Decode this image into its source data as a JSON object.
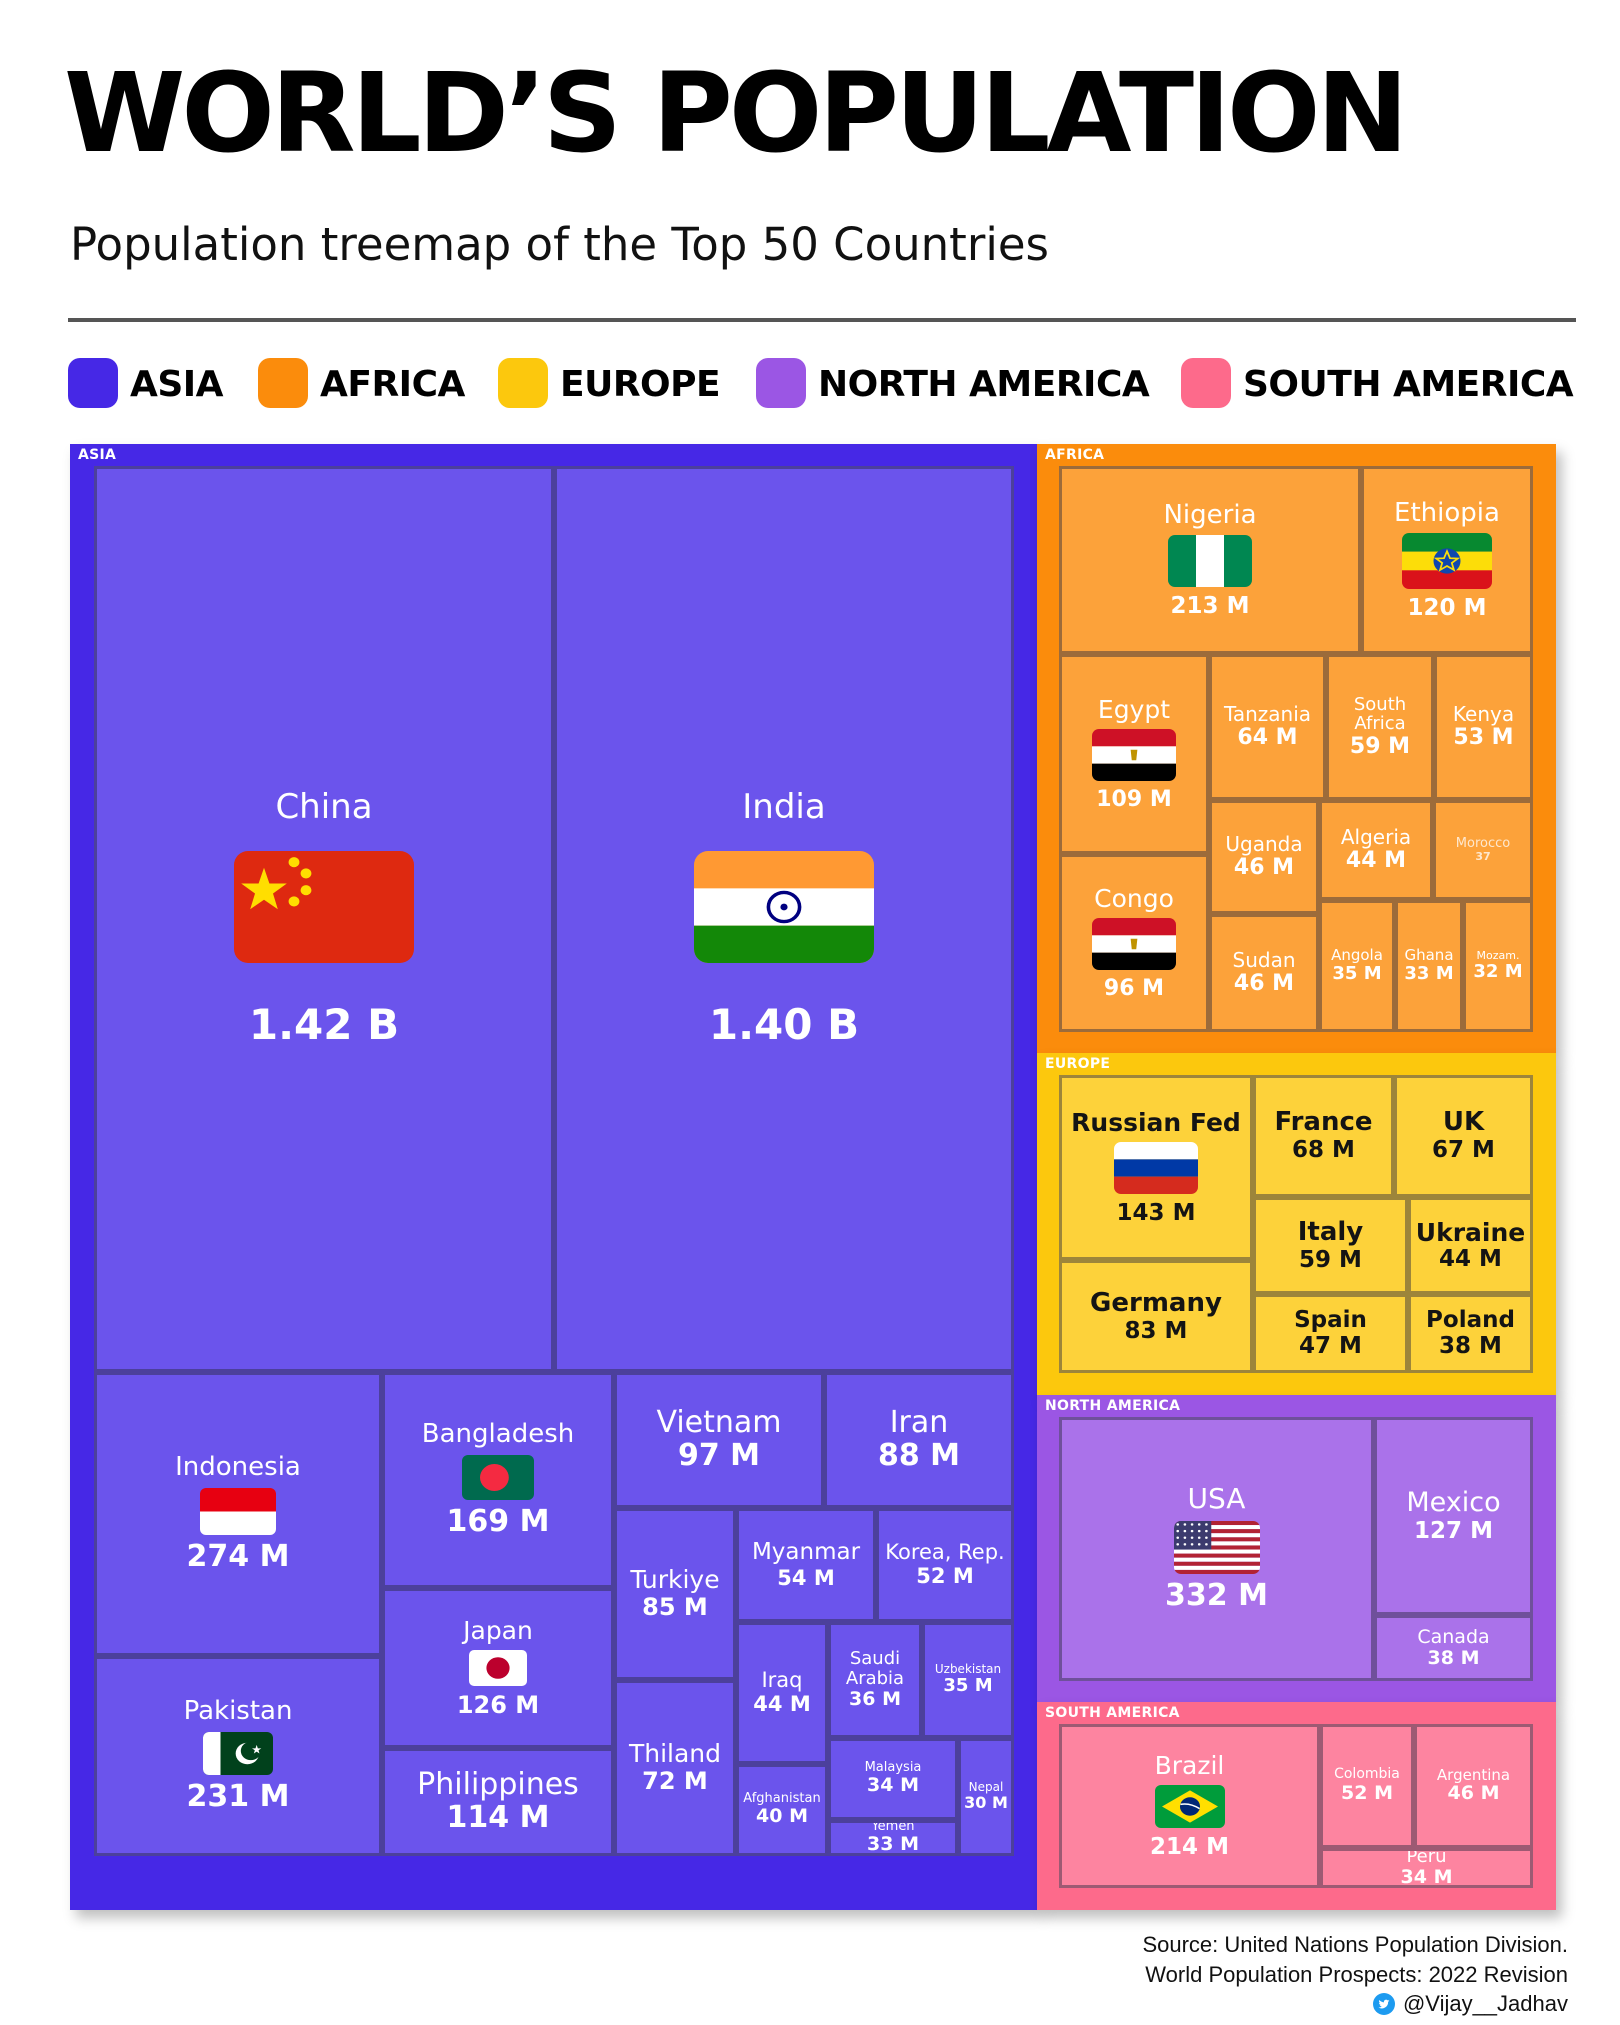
{
  "header": {
    "title": "WORLD’S POPULATION",
    "subtitle": "Population treemap of the Top 50 Countries"
  },
  "legend": [
    {
      "label": "ASIA",
      "color": "#4628e6"
    },
    {
      "label": "AFRICA",
      "color": "#fb8c0c"
    },
    {
      "label": "EUROPE",
      "color": "#fcc80d"
    },
    {
      "label": "NORTH AMERICA",
      "color": "#9b56e4"
    },
    {
      "label": "SOUTH AMERICA",
      "color": "#fd6a8b"
    }
  ],
  "chart_data": {
    "type": "treemap",
    "groups": [
      {
        "name": "ASIA",
        "color": "#4628e6",
        "cell_color": "#6b54ec",
        "items": [
          {
            "name": "China",
            "label": "1.42 B",
            "value": 1420,
            "flag": "china-flag"
          },
          {
            "name": "India",
            "label": "1.40 B",
            "value": 1400,
            "flag": "india-flag"
          },
          {
            "name": "Indonesia",
            "label": "274 M",
            "value": 274,
            "flag": "indonesia-flag"
          },
          {
            "name": "Pakistan",
            "label": "231 M",
            "value": 231,
            "flag": "pakistan-flag"
          },
          {
            "name": "Bangladesh",
            "label": "169 M",
            "value": 169,
            "flag": "bangladesh-flag"
          },
          {
            "name": "Japan",
            "label": "126 M",
            "value": 126,
            "flag": "japan-flag"
          },
          {
            "name": "Philippines",
            "label": "114 M",
            "value": 114
          },
          {
            "name": "Vietnam",
            "label": "97 M",
            "value": 97
          },
          {
            "name": "Iran",
            "label": "88 M",
            "value": 88
          },
          {
            "name": "Turkiye",
            "label": "85 M",
            "value": 85
          },
          {
            "name": "Thiland",
            "label": "72 M",
            "value": 72
          },
          {
            "name": "Myanmar",
            "label": "54 M",
            "value": 54
          },
          {
            "name": "Korea, Rep.",
            "label": "52 M",
            "value": 52
          },
          {
            "name": "Iraq",
            "label": "44 M",
            "value": 44
          },
          {
            "name": "Saudi Arabia",
            "label": "36 M",
            "value": 36
          },
          {
            "name": "Uzbekistan",
            "label": "35 M",
            "value": 35
          },
          {
            "name": "Malaysia",
            "label": "34 M",
            "value": 34
          },
          {
            "name": "Afghanistan",
            "label": "40 M",
            "value": 40
          },
          {
            "name": "Yemen",
            "label": "33 M",
            "value": 33
          },
          {
            "name": "Nepal",
            "label": "30 M",
            "value": 30
          }
        ]
      },
      {
        "name": "AFRICA",
        "color": "#fb8c0c",
        "cell_color": "#fca23a",
        "items": [
          {
            "name": "Nigeria",
            "label": "213 M",
            "value": 213,
            "flag": "nigeria-flag"
          },
          {
            "name": "Ethiopia",
            "label": "120 M",
            "value": 120,
            "flag": "ethiopia-flag"
          },
          {
            "name": "Egypt",
            "label": "109 M",
            "value": 109,
            "flag": "egypt-flag"
          },
          {
            "name": "Tanzania",
            "label": "64 M",
            "value": 64
          },
          {
            "name": "South Africa",
            "label": "59 M",
            "value": 59
          },
          {
            "name": "Kenya",
            "label": "53 M",
            "value": 53
          },
          {
            "name": "Uganda",
            "label": "46 M",
            "value": 46
          },
          {
            "name": "Algeria",
            "label": "44 M",
            "value": 44
          },
          {
            "name": "Morocco",
            "label": "37",
            "value": 37
          },
          {
            "name": "Congo",
            "label": "96 M",
            "value": 96,
            "flag": "congo-flag"
          },
          {
            "name": "Sudan",
            "label": "46 M",
            "value": 46
          },
          {
            "name": "Angola",
            "label": "35 M",
            "value": 35
          },
          {
            "name": "Ghana",
            "label": "33 M",
            "value": 33
          },
          {
            "name": "Mozam.",
            "label": "32 M",
            "value": 32
          }
        ]
      },
      {
        "name": "EUROPE",
        "color": "#fcc80d",
        "cell_color": "#fdd23a",
        "items": [
          {
            "name": "Russian Fed",
            "label": "143 M",
            "value": 143,
            "flag": "russia-flag"
          },
          {
            "name": "France",
            "label": "68 M",
            "value": 68
          },
          {
            "name": "UK",
            "label": "67 M",
            "value": 67
          },
          {
            "name": "Italy",
            "label": "59 M",
            "value": 59
          },
          {
            "name": "Ukraine",
            "label": "44 M",
            "value": 44
          },
          {
            "name": "Germany",
            "label": "83 M",
            "value": 83
          },
          {
            "name": "Spain",
            "label": "47 M",
            "value": 47
          },
          {
            "name": "Poland",
            "label": "38 M",
            "value": 38
          }
        ]
      },
      {
        "name": "NORTH AMERICA",
        "color": "#9b56e4",
        "cell_color": "#aa72ea",
        "items": [
          {
            "name": "USA",
            "label": "332 M",
            "value": 332,
            "flag": "usa-flag"
          },
          {
            "name": "Mexico",
            "label": "127 M",
            "value": 127
          },
          {
            "name": "Canada",
            "label": "38 M",
            "value": 38
          }
        ]
      },
      {
        "name": "SOUTH AMERICA",
        "color": "#fd6a8b",
        "cell_color": "#fd84a0",
        "items": [
          {
            "name": "Brazil",
            "label": "214 M",
            "value": 214,
            "flag": "brazil-flag"
          },
          {
            "name": "Colombia",
            "label": "52 M",
            "value": 52
          },
          {
            "name": "Argentina",
            "label": "46 M",
            "value": 46
          },
          {
            "name": "Peru",
            "label": "34 M",
            "value": 34
          }
        ]
      }
    ]
  },
  "footer": {
    "source_line1": "Source: United Nations Population Division.",
    "source_line2": "World Population Prospects: 2022 Revision",
    "handle": "@Vijay__Jadhav",
    "handle_icon": "twitter-icon"
  }
}
